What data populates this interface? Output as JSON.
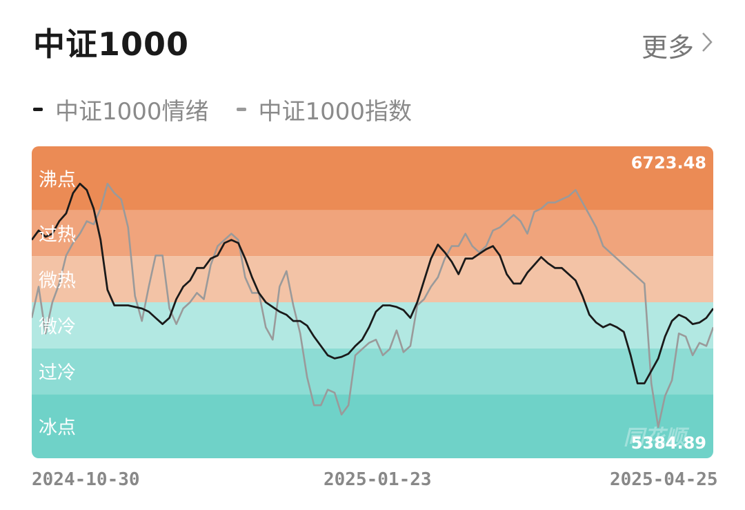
{
  "header": {
    "title": "中证1000",
    "more_label": "更多",
    "more_icon": "chevron-right-icon"
  },
  "legend": [
    {
      "label": "中证1000情绪",
      "color": "#1a1a1a"
    },
    {
      "label": "中证1000指数",
      "color": "#9a9a9a"
    }
  ],
  "colors": {
    "zones": [
      "#eb8b55",
      "#f0a47c",
      "#f3c3a6",
      "#b2e8e2",
      "#8ddcd4",
      "#6fd2c8"
    ],
    "emotion_line": "#1a1a1a",
    "index_line": "#9a9a9a"
  },
  "chart_data": {
    "type": "line",
    "zones": [
      "沸点",
      "过热",
      "微热",
      "微冷",
      "过冷",
      "冰点"
    ],
    "index_max_label": "6723.48",
    "index_min_label": "5384.89",
    "watermark": "同花顺",
    "x_ticks": [
      "2024-10-30",
      "2025-01-23",
      "2025-04-25"
    ],
    "ylim": [
      0,
      100
    ],
    "series": [
      {
        "name": "中证1000情绪",
        "values": [
          70.0,
          73.0,
          71.0,
          72.0,
          76.0,
          78.5,
          85.0,
          88.0,
          86.0,
          80.0,
          70.0,
          54.0,
          49.0,
          49.0,
          49.0,
          48.5,
          48.0,
          47.0,
          45.0,
          43.0,
          45.0,
          51.0,
          55.0,
          57.0,
          61.0,
          61.0,
          64.0,
          65.0,
          69.0,
          70.0,
          69.0,
          64.0,
          58.0,
          53.0,
          50.0,
          48.5,
          47.0,
          46.0,
          44.0,
          44.0,
          42.5,
          39.0,
          36.0,
          33.0,
          32.0,
          32.5,
          33.5,
          36.0,
          38.0,
          42.0,
          47.0,
          49.0,
          49.0,
          48.5,
          47.5,
          45.0,
          50.0,
          57.0,
          64.0,
          68.5,
          66.0,
          63.0,
          59.0,
          64.0,
          64.0,
          65.5,
          67.0,
          68.0,
          65.0,
          59.0,
          56.0,
          56.0,
          59.5,
          62.0,
          64.5,
          62.5,
          61.0,
          61.0,
          59.0,
          57.0,
          52.0,
          46.0,
          43.5,
          42.0,
          43.0,
          42.0,
          40.5,
          33.0,
          24.0,
          24.0,
          28.0,
          32.0,
          39.0,
          44.0,
          46.0,
          45.0,
          43.0,
          43.5,
          45.0,
          48.0
        ]
      },
      {
        "name": "中证1000指数",
        "values": [
          45.0,
          55.0,
          40.0,
          50.0,
          56.0,
          65.0,
          69.0,
          72.0,
          76.0,
          75.0,
          80.0,
          88.0,
          85.0,
          83.0,
          74.0,
          52.0,
          44.0,
          55.0,
          65.0,
          65.0,
          48.0,
          43.0,
          48.0,
          50.0,
          53.0,
          51.0,
          62.0,
          68.0,
          70.0,
          72.0,
          70.0,
          58.0,
          53.0,
          53.0,
          42.0,
          38.0,
          55.0,
          60.0,
          49.0,
          40.0,
          26.0,
          17.0,
          17.0,
          22.0,
          21.0,
          14.0,
          17.0,
          33.0,
          35.0,
          37.0,
          38.0,
          33.0,
          35.0,
          41.0,
          34.0,
          36.0,
          49.0,
          51.0,
          55.0,
          58.0,
          64.0,
          68.0,
          68.0,
          72.0,
          68.0,
          66.0,
          68.0,
          73.0,
          74.0,
          76.0,
          78.0,
          76.0,
          72.0,
          79.0,
          80.0,
          82.0,
          82.0,
          83.0,
          84.0,
          86.0,
          82.0,
          78.0,
          74.0,
          68.0,
          66.0,
          64.0,
          62.0,
          60.0,
          58.0,
          56.0,
          24.0,
          10.0,
          20.0,
          25.0,
          40.0,
          39.0,
          33.0,
          37.0,
          36.0,
          42.0
        ]
      }
    ]
  }
}
